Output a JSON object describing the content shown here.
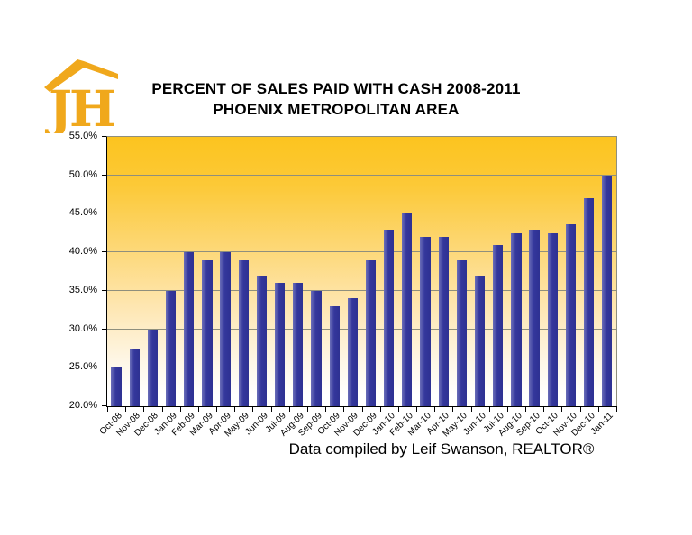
{
  "logo": {
    "text": "JH"
  },
  "header": {
    "title_line1": "PERCENT OF SALES PAID WITH CASH 2008-2011",
    "title_line2": "PHOENIX METROPOLITAN AREA"
  },
  "footer": {
    "credit": "Data compiled by Leif Swanson, REALTOR®"
  },
  "colors": {
    "bar": "#2e3192",
    "bar_highlight": "#6a6db8",
    "logo_gold": "#f0a81c",
    "plot_gradient_top": "#fcc41f",
    "plot_gradient_bottom": "#ffffff",
    "gridline": "#8f8f7d",
    "axis": "#000000",
    "text": "#000000"
  },
  "chart_data": {
    "type": "bar",
    "title": "PERCENT OF SALES PAID WITH CASH 2008-2011 PHOENIX METROPOLITAN AREA",
    "xlabel": "",
    "ylabel": "",
    "units": "percent",
    "ylim": [
      20,
      55
    ],
    "grid": true,
    "legend": false,
    "categories": [
      "Oct-08",
      "Nov-08",
      "Dec-08",
      "Jan-09",
      "Feb-09",
      "Mar-09",
      "Apr-09",
      "May-09",
      "Jun-09",
      "Jul-09",
      "Aug-09",
      "Sep-09",
      "Oct-09",
      "Nov-09",
      "Dec-09",
      "Jan-10",
      "Feb-10",
      "Mar-10",
      "Apr-10",
      "May-10",
      "Jun-10",
      "Jul-10",
      "Aug-10",
      "Sep-10",
      "Oct-10",
      "Nov-10",
      "Dec-10",
      "Jan-11"
    ],
    "values": [
      25.0,
      27.5,
      30.0,
      35.0,
      40.0,
      39.0,
      40.0,
      39.0,
      37.0,
      36.0,
      36.0,
      35.0,
      33.0,
      34.0,
      39.0,
      43.0,
      45.0,
      42.0,
      42.0,
      39.0,
      37.0,
      41.0,
      42.5,
      43.0,
      42.5,
      43.7,
      47.0,
      50.0
    ],
    "yticks": [
      {
        "value": 20,
        "label": "20.0%"
      },
      {
        "value": 25,
        "label": "25.0%"
      },
      {
        "value": 30,
        "label": "30.0%"
      },
      {
        "value": 35,
        "label": "35.0%"
      },
      {
        "value": 40,
        "label": "40.0%"
      },
      {
        "value": 45,
        "label": "45.0%"
      },
      {
        "value": 50,
        "label": "50.0%"
      },
      {
        "value": 55,
        "label": "55.0%"
      }
    ]
  }
}
